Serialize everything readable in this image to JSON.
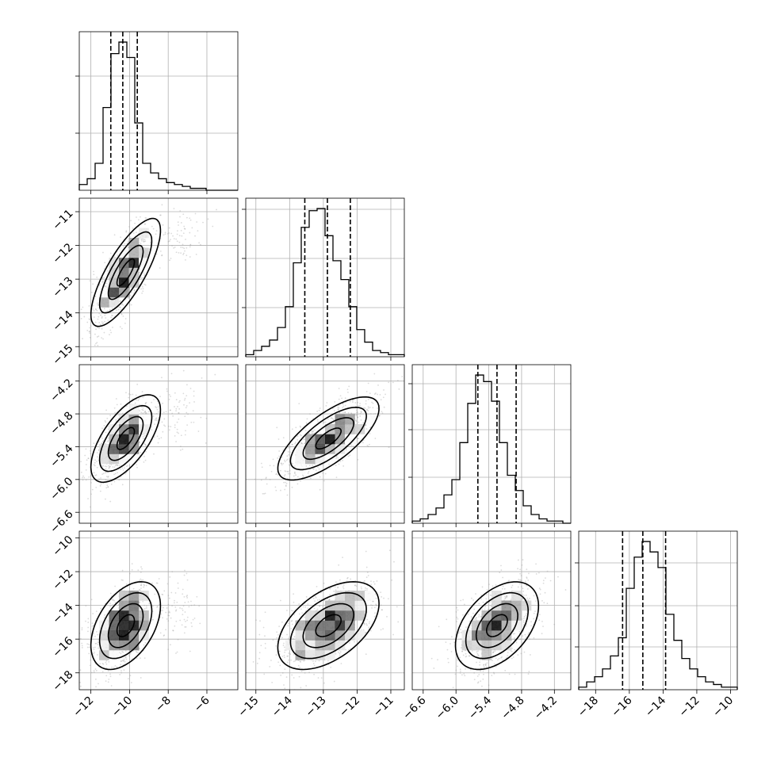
{
  "chart_data": {
    "type": "scatter",
    "title": "",
    "parameters": [
      {
        "range": [
          -12.6,
          -4.4
        ],
        "ticks": [
          -12,
          -10,
          -8,
          -6
        ],
        "tick_labels": [
          "−12",
          "−10",
          "−8",
          "−6"
        ],
        "quantiles": [
          -10.97,
          -10.35,
          -9.6
        ]
      },
      {
        "range": [
          -15.3,
          -10.6
        ],
        "ticks": [
          -15,
          -14,
          -13,
          -12,
          -11
        ],
        "tick_labels": [
          "−15",
          "−14",
          "−13",
          "−12",
          "−11"
        ],
        "quantiles": [
          -13.55,
          -12.88,
          -12.2
        ]
      },
      {
        "range": [
          -6.8,
          -3.9
        ],
        "ticks": [
          -6.6,
          -6.0,
          -5.4,
          -4.8,
          -4.2
        ],
        "tick_labels": [
          "−6.6",
          "−6.0",
          "−5.4",
          "−4.8",
          "−4.2"
        ],
        "quantiles": [
          -5.6,
          -5.25,
          -4.9
        ]
      },
      {
        "range": [
          -19.0,
          -9.6
        ],
        "ticks": [
          -18,
          -16,
          -14,
          -12,
          -10
        ],
        "tick_labels": [
          "−18",
          "−16",
          "−14",
          "−12",
          "−10"
        ],
        "quantiles": [
          -16.4,
          -15.2,
          -13.85
        ]
      }
    ],
    "histograms": [
      [
        3,
        6,
        14,
        43,
        71,
        77,
        69,
        35,
        14,
        9,
        6,
        4,
        3,
        2,
        1,
        1,
        0,
        0,
        0,
        0
      ],
      [
        1,
        3,
        5,
        8,
        14,
        24,
        45,
        62,
        70,
        71,
        58,
        46,
        37,
        24,
        13,
        7,
        3,
        2,
        1,
        1
      ],
      [
        1,
        2,
        4,
        7,
        13,
        20,
        37,
        55,
        68,
        65,
        56,
        37,
        22,
        15,
        8,
        4,
        2,
        1,
        1,
        0
      ],
      [
        1,
        3,
        5,
        8,
        13,
        20,
        39,
        51,
        57,
        53,
        47,
        29,
        19,
        12,
        8,
        5,
        3,
        2,
        1,
        1
      ]
    ],
    "hist_ytick_fractions": [
      [
        0.36,
        0.72
      ],
      [
        0.31,
        0.62,
        0.93
      ],
      [
        0.29,
        0.59,
        0.88
      ],
      [
        0.27,
        0.53,
        0.8
      ]
    ],
    "pair_stats": {
      "1,0": {
        "mean": [
          -10.2,
          -12.8
        ],
        "sd": [
          0.9,
          0.8
        ],
        "rho": 0.78
      },
      "2,0": {
        "mean": [
          -10.2,
          -5.25
        ],
        "sd": [
          0.9,
          0.4
        ],
        "rho": 0.65
      },
      "2,1": {
        "mean": [
          -12.85,
          -5.25
        ],
        "sd": [
          0.75,
          0.38
        ],
        "rho": 0.72
      },
      "3,0": {
        "mean": [
          -10.2,
          -15.2
        ],
        "sd": [
          0.9,
          1.3
        ],
        "rho": 0.45
      },
      "3,1": {
        "mean": [
          -12.85,
          -15.2
        ],
        "sd": [
          0.75,
          1.3
        ],
        "rho": 0.5
      },
      "3,2": {
        "mean": [
          -5.25,
          -15.2
        ],
        "sd": [
          0.38,
          1.3
        ],
        "rho": 0.45
      }
    },
    "contour_levels_sigma": [
      0.5,
      1.0,
      1.5,
      2.0
    ],
    "xlabel": "",
    "ylabel": "",
    "grid": true
  }
}
